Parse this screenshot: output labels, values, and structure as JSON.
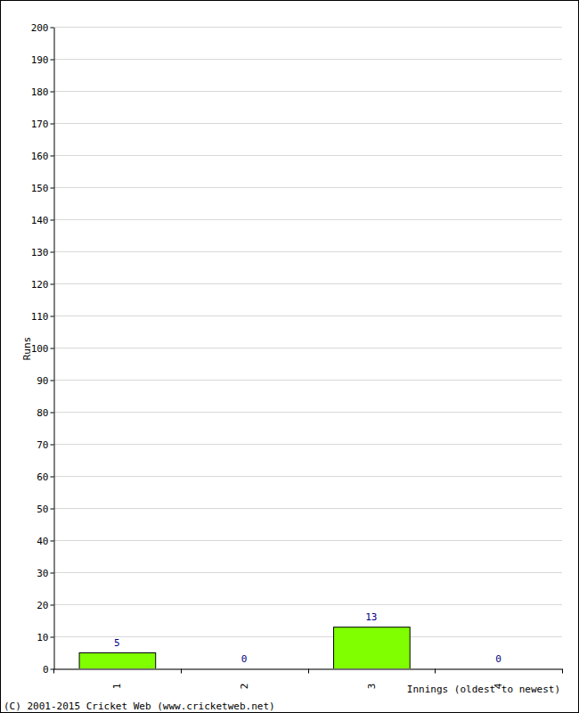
{
  "chart_data": {
    "type": "bar",
    "y_label": "Runs",
    "x_label": "Innings (oldest to newest)",
    "footer": "(C) 2001-2015 Cricket Web (www.cricketweb.net)",
    "categories": [
      "1",
      "2",
      "3",
      "4"
    ],
    "values": [
      5,
      0,
      13,
      0
    ],
    "color": "#80ff00",
    "ylim": [
      0,
      200
    ],
    "yticks": [
      0,
      10,
      20,
      30,
      40,
      50,
      60,
      70,
      80,
      90,
      100,
      110,
      120,
      130,
      140,
      150,
      160,
      170,
      180,
      190,
      200
    ],
    "grid": true,
    "data_labels": true
  }
}
